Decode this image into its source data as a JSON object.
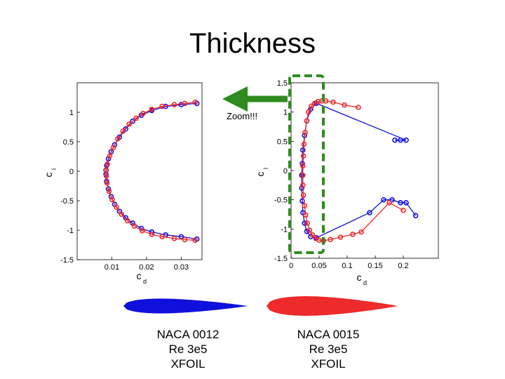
{
  "title": "Thickness",
  "annotation": "Zoom!!!",
  "colors": {
    "naca0012": "#1010dd",
    "naca0015": "#ee2a2a",
    "zoom": "#2e8b1e"
  },
  "captions": [
    {
      "airfoil": "NACA 0012",
      "re": "Re 3e5",
      "method": "XFOIL"
    },
    {
      "airfoil": "NACA 0015",
      "re": "Re 3e5",
      "method": "XFOIL"
    }
  ],
  "chart_data": [
    {
      "type": "line",
      "title": "",
      "xlabel": "c",
      "xlabel_sub": "d",
      "ylabel": "c",
      "ylabel_sub": "l",
      "xlim": [
        0.0,
        0.035
      ],
      "ylim": [
        -1.5,
        1.5
      ],
      "xticks": [
        {
          "v": 0.01,
          "label": "0.01"
        },
        {
          "v": 0.02,
          "label": "0.02"
        },
        {
          "v": 0.03,
          "label": "0.03"
        }
      ],
      "yticks": [
        {
          "v": 1,
          "label": "1"
        },
        {
          "v": 0.5,
          "label": "0.5"
        },
        {
          "v": 0,
          "label": "0"
        },
        {
          "v": -0.5,
          "label": "-0.5"
        },
        {
          "v": -1,
          "label": "-1"
        },
        {
          "v": -1.5,
          "label": "-1.5"
        }
      ],
      "series": [
        {
          "name": "NACA 0012",
          "color": "#1010dd",
          "x": [
            0.0345,
            0.03,
            0.0255,
            0.0215,
            0.0185,
            0.016,
            0.014,
            0.0122,
            0.0108,
            0.0098,
            0.009,
            0.0085,
            0.0083,
            0.0083,
            0.0085,
            0.009,
            0.0098,
            0.0108,
            0.0122,
            0.014,
            0.016,
            0.0185,
            0.0215,
            0.0255,
            0.03,
            0.0345
          ],
          "y": [
            1.15,
            1.13,
            1.1,
            1.03,
            0.95,
            0.85,
            0.72,
            0.58,
            0.45,
            0.33,
            0.21,
            0.1,
            0.02,
            -0.05,
            -0.17,
            -0.3,
            -0.43,
            -0.56,
            -0.68,
            -0.79,
            -0.88,
            -0.97,
            -1.03,
            -1.08,
            -1.11,
            -1.15
          ]
        },
        {
          "name": "NACA 0015",
          "color": "#ee2a2a",
          "x": [
            0.034,
            0.031,
            0.028,
            0.0245,
            0.0215,
            0.019,
            0.017,
            0.015,
            0.0132,
            0.0117,
            0.0104,
            0.0094,
            0.0087,
            0.0084,
            0.0084,
            0.0086,
            0.0092,
            0.0101,
            0.0113,
            0.0128,
            0.0145,
            0.0165,
            0.0188,
            0.0215,
            0.0245,
            0.028,
            0.031,
            0.034
          ],
          "y": [
            1.17,
            1.15,
            1.13,
            1.1,
            1.05,
            0.98,
            0.9,
            0.8,
            0.68,
            0.55,
            0.4,
            0.26,
            0.12,
            0.02,
            -0.08,
            -0.2,
            -0.34,
            -0.48,
            -0.61,
            -0.73,
            -0.84,
            -0.93,
            -1.01,
            -1.07,
            -1.11,
            -1.14,
            -1.16,
            -1.17
          ]
        }
      ]
    },
    {
      "type": "line",
      "title": "",
      "xlabel": "c",
      "xlabel_sub": "d",
      "ylabel": "c",
      "ylabel_sub": "l",
      "xlim": [
        0.0,
        0.26
      ],
      "ylim": [
        -1.5,
        1.5
      ],
      "xticks": [
        {
          "v": 0,
          "label": "0"
        },
        {
          "v": 0.05,
          "label": "0.05"
        },
        {
          "v": 0.1,
          "label": "0.1"
        },
        {
          "v": 0.15,
          "label": "0.15"
        },
        {
          "v": 0.2,
          "label": "0.2"
        }
      ],
      "yticks": [
        {
          "v": 1.5,
          "label": "1.5"
        },
        {
          "v": 1,
          "label": "1"
        },
        {
          "v": 0.5,
          "label": "0.5"
        },
        {
          "v": 0,
          "label": "0"
        },
        {
          "v": -0.5,
          "label": "-0.5"
        },
        {
          "v": -1,
          "label": "-1"
        },
        {
          "v": -1.5,
          "label": "-1.5"
        }
      ],
      "series": [
        {
          "name": "NACA 0012",
          "color": "#1010dd",
          "x": [
            0.185,
            0.195,
            0.205,
            0.045,
            0.035,
            0.028,
            0.024,
            0.021,
            0.02,
            0.019,
            0.019,
            0.02,
            0.021,
            0.024,
            0.028,
            0.035,
            0.045,
            0.14,
            0.165,
            0.18,
            0.195,
            0.205,
            0.222
          ],
          "y": [
            0.52,
            0.52,
            0.52,
            1.15,
            1.05,
            0.85,
            0.6,
            0.35,
            0.12,
            -0.08,
            -0.3,
            -0.52,
            -0.72,
            -0.9,
            -1.04,
            -1.13,
            -1.15,
            -0.72,
            -0.5,
            -0.5,
            -0.55,
            -0.55,
            -0.77
          ]
        },
        {
          "name": "NACA 0015",
          "color": "#ee2a2a",
          "x": [
            0.12,
            0.095,
            0.075,
            0.062,
            0.055,
            0.048,
            0.042,
            0.036,
            0.031,
            0.028,
            0.025,
            0.023,
            0.022,
            0.021,
            0.021,
            0.021,
            0.022,
            0.024,
            0.026,
            0.029,
            0.033,
            0.038,
            0.044,
            0.05,
            0.058,
            0.07,
            0.088,
            0.11,
            0.125,
            0.175,
            0.2
          ],
          "y": [
            1.08,
            1.12,
            1.17,
            1.19,
            1.19,
            1.18,
            1.15,
            1.1,
            1.0,
            0.85,
            0.65,
            0.45,
            0.25,
            0.08,
            -0.08,
            -0.25,
            -0.42,
            -0.6,
            -0.76,
            -0.9,
            -1.02,
            -1.1,
            -1.16,
            -1.19,
            -1.2,
            -1.18,
            -1.14,
            -1.09,
            -1.05,
            -0.55,
            -0.68
          ]
        }
      ]
    }
  ]
}
